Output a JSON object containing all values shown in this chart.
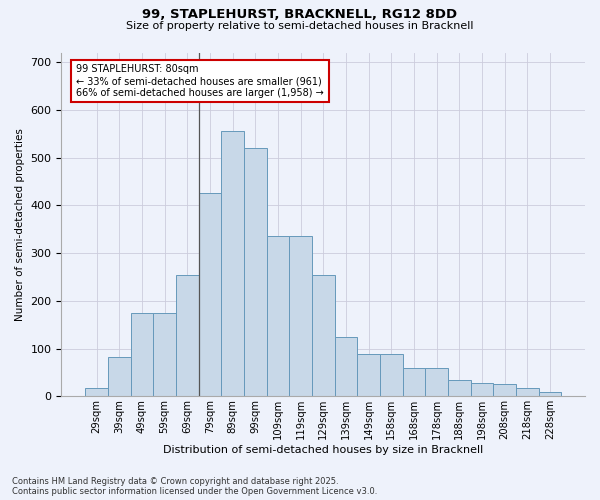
{
  "title_line1": "99, STAPLEHURST, BRACKNELL, RG12 8DD",
  "title_line2": "Size of property relative to semi-detached houses in Bracknell",
  "xlabel": "Distribution of semi-detached houses by size in Bracknell",
  "ylabel": "Number of semi-detached properties",
  "categories": [
    "29sqm",
    "39sqm",
    "49sqm",
    "59sqm",
    "69sqm",
    "79sqm",
    "89sqm",
    "99sqm",
    "109sqm",
    "119sqm",
    "129sqm",
    "139sqm",
    "149sqm",
    "158sqm",
    "168sqm",
    "178sqm",
    "188sqm",
    "198sqm",
    "208sqm",
    "218sqm",
    "228sqm"
  ],
  "values": [
    18,
    82,
    175,
    175,
    255,
    425,
    555,
    520,
    335,
    335,
    255,
    125,
    88,
    88,
    60,
    60,
    35,
    28,
    25,
    18,
    8
  ],
  "bar_color": "#c8d8e8",
  "bar_edge_color": "#6699bb",
  "annotation_text": "99 STAPLEHURST: 80sqm\n← 33% of semi-detached houses are smaller (961)\n66% of semi-detached houses are larger (1,958) →",
  "annotation_box_color": "#ffffff",
  "annotation_border_color": "#cc0000",
  "background_color": "#eef2fb",
  "footer_line1": "Contains HM Land Registry data © Crown copyright and database right 2025.",
  "footer_line2": "Contains public sector information licensed under the Open Government Licence v3.0.",
  "ylim": [
    0,
    720
  ],
  "yticks": [
    0,
    100,
    200,
    300,
    400,
    500,
    600,
    700
  ],
  "vline_index": 5
}
